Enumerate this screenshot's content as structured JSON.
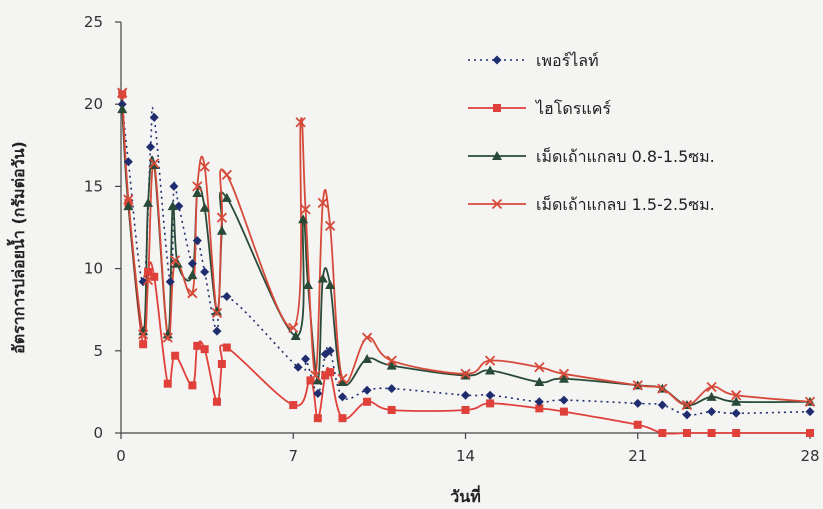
{
  "chart_data": {
    "type": "line",
    "title": "",
    "xlabel": "วันที่",
    "ylabel": "อัตราการปล่อยน้ำ (กรัมต่อวัน)",
    "xlim": [
      0,
      28
    ],
    "ylim": [
      0,
      25
    ],
    "x_ticks": [
      "0",
      "7",
      "14",
      "21",
      "28"
    ],
    "y_ticks": [
      "0",
      "5",
      "10",
      "15",
      "20",
      "25"
    ],
    "grid": false,
    "legend_position": "top-right",
    "series": [
      {
        "name": "เพอร์ไลท์",
        "color": "#1f2d6e",
        "marker": "diamond",
        "line_style": "dotted",
        "points": [
          [
            0.05,
            20.0
          ],
          [
            0.3,
            16.5
          ],
          [
            0.9,
            9.2
          ],
          [
            1.2,
            17.4
          ],
          [
            1.35,
            19.2
          ],
          [
            2.0,
            9.2
          ],
          [
            2.15,
            15.0
          ],
          [
            2.35,
            13.8
          ],
          [
            2.9,
            10.3
          ],
          [
            3.1,
            11.7
          ],
          [
            3.4,
            9.8
          ],
          [
            3.9,
            6.2
          ],
          [
            4.3,
            8.3
          ],
          [
            7.2,
            4.0
          ],
          [
            7.5,
            4.5
          ],
          [
            8.0,
            2.4
          ],
          [
            8.3,
            4.8
          ],
          [
            8.5,
            5.0
          ],
          [
            9.0,
            2.2
          ],
          [
            10.0,
            2.6
          ],
          [
            11.0,
            2.7
          ],
          [
            14.0,
            2.3
          ],
          [
            15.0,
            2.3
          ],
          [
            17.0,
            1.9
          ],
          [
            18.0,
            2.0
          ],
          [
            21.0,
            1.8
          ],
          [
            22.0,
            1.7
          ],
          [
            23.0,
            1.1
          ],
          [
            24.0,
            1.3
          ],
          [
            25.0,
            1.2
          ],
          [
            28.0,
            1.3
          ]
        ]
      },
      {
        "name": "ไฮโดรแคร์",
        "color": "#e0403a",
        "marker": "square",
        "line_style": "solid",
        "points": [
          [
            0.05,
            20.6
          ],
          [
            0.3,
            14.0
          ],
          [
            0.9,
            5.4
          ],
          [
            1.1,
            9.8
          ],
          [
            1.35,
            9.5
          ],
          [
            1.9,
            3.0
          ],
          [
            2.2,
            4.7
          ],
          [
            2.9,
            2.9
          ],
          [
            3.1,
            5.3
          ],
          [
            3.4,
            5.1
          ],
          [
            3.9,
            1.9
          ],
          [
            4.1,
            4.2
          ],
          [
            4.3,
            5.2
          ],
          [
            7.0,
            1.7
          ],
          [
            7.7,
            3.2
          ],
          [
            8.0,
            0.9
          ],
          [
            8.3,
            3.5
          ],
          [
            8.5,
            3.7
          ],
          [
            9.0,
            0.9
          ],
          [
            10.0,
            1.9
          ],
          [
            11.0,
            1.4
          ],
          [
            14.0,
            1.4
          ],
          [
            15.0,
            1.8
          ],
          [
            17.0,
            1.5
          ],
          [
            18.0,
            1.3
          ],
          [
            21.0,
            0.5
          ],
          [
            22.0,
            0.0
          ],
          [
            23.0,
            0.0
          ],
          [
            24.0,
            0.0
          ],
          [
            25.0,
            0.0
          ],
          [
            28.0,
            0.0
          ]
        ]
      },
      {
        "name": "เม็ดเถ้าแกลบ 0.8-1.5ซม.",
        "color": "#2a4a38",
        "marker": "triangle",
        "line_style": "solid",
        "points": [
          [
            0.05,
            19.7
          ],
          [
            0.3,
            13.8
          ],
          [
            0.9,
            6.2
          ],
          [
            1.1,
            14.0
          ],
          [
            1.35,
            16.3
          ],
          [
            1.9,
            6.0
          ],
          [
            2.1,
            13.8
          ],
          [
            2.3,
            10.3
          ],
          [
            2.9,
            9.6
          ],
          [
            3.1,
            14.6
          ],
          [
            3.4,
            13.7
          ],
          [
            3.9,
            7.4
          ],
          [
            4.1,
            12.3
          ],
          [
            4.3,
            14.3
          ],
          [
            7.1,
            5.9
          ],
          [
            7.4,
            13.0
          ],
          [
            7.6,
            9.0
          ],
          [
            8.0,
            3.2
          ],
          [
            8.2,
            9.4
          ],
          [
            8.5,
            9.0
          ],
          [
            9.0,
            3.1
          ],
          [
            10.0,
            4.5
          ],
          [
            11.0,
            4.1
          ],
          [
            14.0,
            3.5
          ],
          [
            15.0,
            3.8
          ],
          [
            17.0,
            3.1
          ],
          [
            18.0,
            3.3
          ],
          [
            21.0,
            2.9
          ],
          [
            22.0,
            2.7
          ],
          [
            23.0,
            1.7
          ],
          [
            24.0,
            2.2
          ],
          [
            25.0,
            1.9
          ],
          [
            28.0,
            1.9
          ]
        ]
      },
      {
        "name": "เม็ดเถ้าแกลบ 1.5-2.5ซม.",
        "color": "#d64a3a",
        "marker": "x",
        "line_style": "solid",
        "points": [
          [
            0.05,
            20.7
          ],
          [
            0.3,
            14.2
          ],
          [
            0.9,
            6.0
          ],
          [
            1.1,
            9.3
          ],
          [
            1.35,
            16.4
          ],
          [
            1.9,
            5.8
          ],
          [
            2.2,
            10.5
          ],
          [
            2.9,
            8.5
          ],
          [
            3.1,
            15.0
          ],
          [
            3.4,
            16.2
          ],
          [
            3.9,
            7.3
          ],
          [
            4.1,
            13.1
          ],
          [
            4.3,
            15.7
          ],
          [
            7.0,
            6.4
          ],
          [
            7.3,
            18.9
          ],
          [
            7.5,
            13.6
          ],
          [
            7.9,
            3.5
          ],
          [
            8.2,
            14.0
          ],
          [
            8.5,
            12.6
          ],
          [
            9.0,
            3.3
          ],
          [
            10.0,
            5.8
          ],
          [
            11.0,
            4.4
          ],
          [
            14.0,
            3.6
          ],
          [
            15.0,
            4.4
          ],
          [
            17.0,
            4.0
          ],
          [
            18.0,
            3.6
          ],
          [
            21.0,
            2.9
          ],
          [
            22.0,
            2.7
          ],
          [
            23.0,
            1.7
          ],
          [
            24.0,
            2.8
          ],
          [
            25.0,
            2.3
          ],
          [
            28.0,
            1.9
          ]
        ]
      }
    ]
  }
}
